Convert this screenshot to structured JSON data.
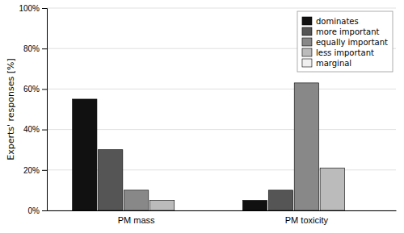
{
  "chart_data": {
    "type": "bar",
    "categories": [
      "PM mass",
      "PM toxicity"
    ],
    "series": [
      {
        "name": "dominates",
        "color": "#111111",
        "values": [
          55,
          5
        ]
      },
      {
        "name": "more important",
        "color": "#555555",
        "values": [
          30,
          10
        ]
      },
      {
        "name": "equally important",
        "color": "#888888",
        "values": [
          10,
          63
        ]
      },
      {
        "name": "less important",
        "color": "#bbbbbb",
        "values": [
          5,
          21
        ]
      },
      {
        "name": "marginal",
        "color": "#f0f0f0",
        "values": [
          0,
          0
        ]
      }
    ],
    "y_label": "Experts' responses [%]",
    "ylim": [
      0,
      100
    ],
    "yticks": [
      {
        "value": 0,
        "label": "0%"
      },
      {
        "value": 20,
        "label": "20%"
      },
      {
        "value": 40,
        "label": "40%"
      },
      {
        "value": 60,
        "label": "60%"
      },
      {
        "value": 80,
        "label": "80%"
      },
      {
        "value": 100,
        "label": "100%"
      }
    ],
    "grid": true,
    "legend": "upper right"
  }
}
